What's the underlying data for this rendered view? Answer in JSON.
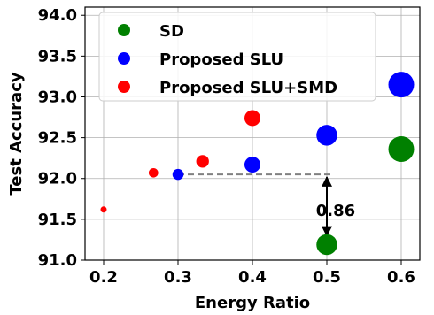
{
  "chart_data": {
    "type": "scatter",
    "title": "",
    "xlabel": "Energy Ratio",
    "ylabel": "Test Accuracy",
    "xlim": [
      0.175,
      0.625
    ],
    "ylim": [
      91.0,
      94.1
    ],
    "xticks": [
      "0.2",
      "0.3",
      "0.4",
      "0.5",
      "0.6"
    ],
    "yticks": [
      "91.0",
      "91.5",
      "92.0",
      "92.5",
      "93.0",
      "93.5",
      "94.0"
    ],
    "grid": true,
    "legend_position": "upper-left",
    "marker_size_encodes": "energy ratio",
    "series": [
      {
        "name": "SD",
        "color": "#008000",
        "points": [
          {
            "x": 0.5,
            "y": 91.19
          },
          {
            "x": 0.6,
            "y": 92.36
          }
        ]
      },
      {
        "name": "Proposed SLU",
        "color": "#0000ff",
        "points": [
          {
            "x": 0.3,
            "y": 92.05
          },
          {
            "x": 0.4,
            "y": 92.17
          },
          {
            "x": 0.5,
            "y": 92.53
          },
          {
            "x": 0.6,
            "y": 93.15
          }
        ]
      },
      {
        "name": "Proposed SLU+SMD",
        "color": "#ff0000",
        "points": [
          {
            "x": 0.2,
            "y": 91.62
          },
          {
            "x": 0.267,
            "y": 92.07
          },
          {
            "x": 0.333,
            "y": 92.21
          },
          {
            "x": 0.4,
            "y": 92.74
          }
        ]
      }
    ],
    "annotations": [
      {
        "type": "dashed-line",
        "color": "#808080",
        "from": {
          "x": 0.3,
          "y": 92.05
        },
        "to": {
          "x": 0.5,
          "y": 92.05
        }
      },
      {
        "type": "double-arrow",
        "color": "#000000",
        "from": {
          "x": 0.5,
          "y": 92.05
        },
        "to": {
          "x": 0.5,
          "y": 91.19
        },
        "label": "0.86"
      }
    ]
  }
}
